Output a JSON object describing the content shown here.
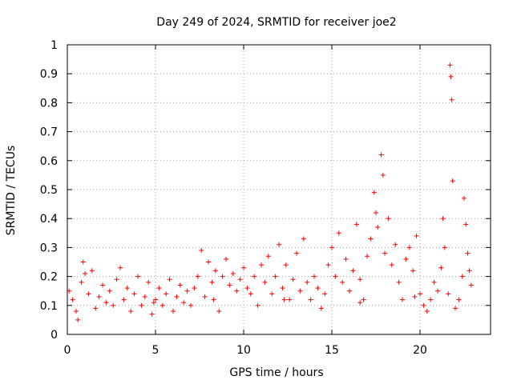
{
  "chart_data": {
    "type": "scatter",
    "title": "Day 249 of 2024, SRMTID for receiver joe2",
    "xlabel": "GPS time / hours",
    "ylabel": "SRMTID / TECUs",
    "xlim": [
      0,
      24
    ],
    "ylim": [
      0,
      1
    ],
    "xticks": [
      0,
      5,
      10,
      15,
      20
    ],
    "yticks": [
      0,
      0.1,
      0.2,
      0.3,
      0.4,
      0.5,
      0.6,
      0.7,
      0.8,
      0.9,
      1
    ],
    "grid": true,
    "marker": "+",
    "color": "#ff0000",
    "series": [
      {
        "name": "SRMTID",
        "points": [
          [
            0.1,
            0.15
          ],
          [
            0.3,
            0.12
          ],
          [
            0.5,
            0.08
          ],
          [
            0.6,
            0.05
          ],
          [
            0.8,
            0.18
          ],
          [
            0.9,
            0.25
          ],
          [
            1.0,
            0.21
          ],
          [
            1.2,
            0.14
          ],
          [
            1.4,
            0.22
          ],
          [
            1.6,
            0.09
          ],
          [
            1.8,
            0.13
          ],
          [
            2.0,
            0.17
          ],
          [
            2.2,
            0.11
          ],
          [
            2.4,
            0.15
          ],
          [
            2.6,
            0.1
          ],
          [
            2.8,
            0.19
          ],
          [
            3.0,
            0.23
          ],
          [
            3.2,
            0.12
          ],
          [
            3.4,
            0.16
          ],
          [
            3.6,
            0.08
          ],
          [
            3.8,
            0.14
          ],
          [
            4.0,
            0.2
          ],
          [
            4.2,
            0.1
          ],
          [
            4.4,
            0.13
          ],
          [
            4.6,
            0.18
          ],
          [
            4.8,
            0.07
          ],
          [
            5.0,
            0.12
          ],
          [
            5.2,
            0.16
          ],
          [
            5.4,
            0.1
          ],
          [
            5.6,
            0.14
          ],
          [
            5.8,
            0.19
          ],
          [
            6.0,
            0.08
          ],
          [
            6.2,
            0.13
          ],
          [
            6.4,
            0.17
          ],
          [
            6.6,
            0.11
          ],
          [
            6.8,
            0.15
          ],
          [
            7.0,
            0.1
          ],
          [
            7.2,
            0.16
          ],
          [
            7.4,
            0.2
          ],
          [
            7.6,
            0.29
          ],
          [
            7.8,
            0.13
          ],
          [
            8.0,
            0.25
          ],
          [
            8.2,
            0.18
          ],
          [
            8.4,
            0.22
          ],
          [
            8.6,
            0.08
          ],
          [
            8.8,
            0.2
          ],
          [
            9.0,
            0.26
          ],
          [
            9.2,
            0.17
          ],
          [
            9.4,
            0.21
          ],
          [
            9.6,
            0.15
          ],
          [
            9.8,
            0.19
          ],
          [
            10.0,
            0.23
          ],
          [
            10.2,
            0.16
          ],
          [
            10.4,
            0.14
          ],
          [
            10.6,
            0.2
          ],
          [
            10.8,
            0.1
          ],
          [
            11.0,
            0.24
          ],
          [
            11.2,
            0.18
          ],
          [
            11.4,
            0.27
          ],
          [
            11.6,
            0.14
          ],
          [
            11.8,
            0.2
          ],
          [
            12.0,
            0.31
          ],
          [
            12.2,
            0.16
          ],
          [
            12.4,
            0.24
          ],
          [
            12.6,
            0.12
          ],
          [
            12.8,
            0.19
          ],
          [
            13.0,
            0.28
          ],
          [
            13.2,
            0.15
          ],
          [
            13.4,
            0.33
          ],
          [
            13.6,
            0.18
          ],
          [
            13.8,
            0.12
          ],
          [
            14.0,
            0.2
          ],
          [
            14.2,
            0.16
          ],
          [
            14.4,
            0.09
          ],
          [
            14.6,
            0.14
          ],
          [
            14.8,
            0.24
          ],
          [
            15.0,
            0.3
          ],
          [
            15.2,
            0.2
          ],
          [
            15.4,
            0.35
          ],
          [
            15.6,
            0.18
          ],
          [
            15.8,
            0.26
          ],
          [
            16.0,
            0.15
          ],
          [
            16.2,
            0.22
          ],
          [
            16.4,
            0.38
          ],
          [
            16.6,
            0.19
          ],
          [
            16.8,
            0.12
          ],
          [
            17.0,
            0.27
          ],
          [
            17.2,
            0.33
          ],
          [
            17.4,
            0.49
          ],
          [
            17.5,
            0.42
          ],
          [
            17.6,
            0.37
          ],
          [
            17.8,
            0.62
          ],
          [
            17.9,
            0.55
          ],
          [
            18.0,
            0.28
          ],
          [
            18.2,
            0.4
          ],
          [
            18.4,
            0.24
          ],
          [
            18.6,
            0.31
          ],
          [
            18.8,
            0.18
          ],
          [
            19.0,
            0.12
          ],
          [
            19.2,
            0.26
          ],
          [
            19.4,
            0.3
          ],
          [
            19.6,
            0.22
          ],
          [
            19.8,
            0.34
          ],
          [
            20.0,
            0.14
          ],
          [
            20.2,
            0.1
          ],
          [
            20.4,
            0.08
          ],
          [
            20.6,
            0.12
          ],
          [
            20.8,
            0.18
          ],
          [
            21.0,
            0.15
          ],
          [
            21.2,
            0.23
          ],
          [
            21.4,
            0.3
          ],
          [
            21.6,
            0.14
          ],
          [
            21.7,
            0.93
          ],
          [
            21.75,
            0.89
          ],
          [
            21.8,
            0.81
          ],
          [
            21.85,
            0.53
          ],
          [
            22.0,
            0.09
          ],
          [
            22.2,
            0.12
          ],
          [
            22.4,
            0.2
          ],
          [
            22.5,
            0.47
          ],
          [
            22.6,
            0.38
          ],
          [
            22.7,
            0.28
          ],
          [
            22.8,
            0.22
          ],
          [
            22.9,
            0.17
          ],
          [
            21.3,
            0.4
          ],
          [
            19.7,
            0.13
          ],
          [
            16.6,
            0.11
          ],
          [
            12.3,
            0.12
          ],
          [
            8.3,
            0.12
          ],
          [
            4.9,
            0.11
          ]
        ]
      }
    ]
  }
}
